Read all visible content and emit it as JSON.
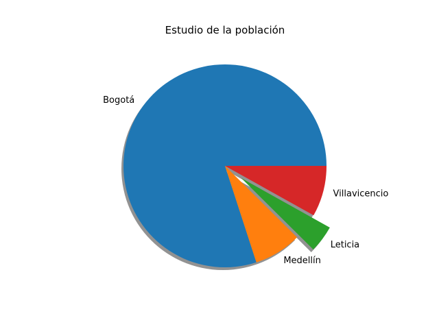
{
  "chart_data": {
    "type": "pie",
    "title": "Estudio de la población",
    "slices": [
      {
        "label": "Bogotá",
        "value": 7.4,
        "color": "#1f77b4",
        "explode": 0
      },
      {
        "label": "Medellín",
        "value": 0.7,
        "color": "#ff7f0e",
        "explode": 0
      },
      {
        "label": "Leticia",
        "value": 0.4,
        "color": "#2ca02c",
        "explode": 0.2
      },
      {
        "label": "Villavicencio",
        "value": 0.75,
        "color": "#d62728",
        "explode": 0
      }
    ],
    "start_angle": 0,
    "direction": "counterclockwise",
    "shadow": true
  }
}
